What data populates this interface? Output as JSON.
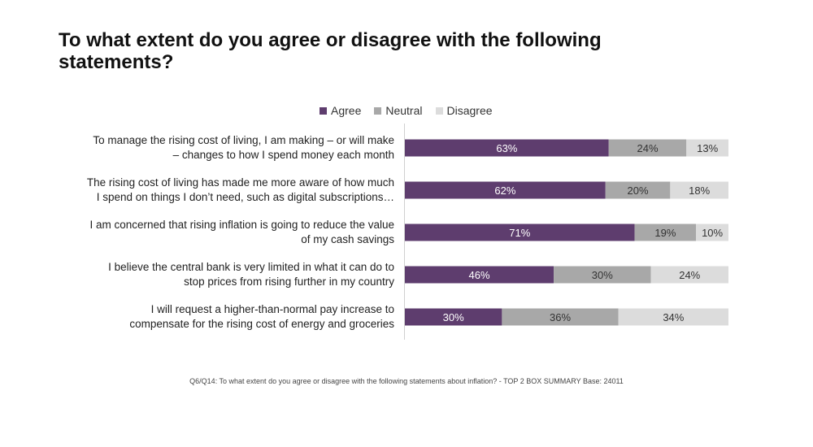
{
  "title": "To what extent do you agree or disagree with the following statements?",
  "footnote": "Q6/Q14: To what extent do you agree or disagree with the following statements about inflation? - TOP 2 BOX SUMMARY Base: 24011",
  "chart_data": {
    "type": "bar",
    "orientation": "horizontal",
    "stacked": true,
    "categories": [
      "To manage the rising cost of living, I am making – or will make – changes to how I spend money each month",
      "The rising cost of living has made me more aware of how much I spend on things I don’t need, such as digital subscriptions…",
      "I am concerned that rising inflation is going to reduce the value of my cash savings",
      "I believe the central bank is very limited in what it can do to stop prices from rising further in my country",
      "I will request a higher-than-normal pay increase to compensate for the rising cost of energy and groceries"
    ],
    "category_lines": [
      [
        "To manage the rising cost of living, I am making – or will make",
        "– changes to how I spend money each month"
      ],
      [
        "The rising cost of living has made me more aware of how much",
        "I spend on things I don’t need, such as digital subscriptions…"
      ],
      [
        "I am concerned that rising inflation is going to reduce the value",
        "of my cash savings"
      ],
      [
        "I believe the central bank is very limited in what it can do to",
        "stop prices from rising further in my country"
      ],
      [
        "I will request a higher-than-normal pay increase to",
        "compensate for the rising cost of energy and groceries"
      ]
    ],
    "series": [
      {
        "name": "Agree",
        "values": [
          63,
          62,
          71,
          46,
          30
        ],
        "color": "#5e3d6e",
        "label_color": "#ffffff"
      },
      {
        "name": "Neutral",
        "values": [
          24,
          20,
          19,
          30,
          36
        ],
        "color": "#a8a8a8",
        "label_color": "#333333"
      },
      {
        "name": "Disagree",
        "values": [
          13,
          18,
          10,
          24,
          34
        ],
        "color": "#dcdcdc",
        "label_color": "#333333"
      }
    ],
    "value_suffix": "%",
    "xlim": [
      0,
      100
    ],
    "legend_position": "top",
    "grid": false
  }
}
